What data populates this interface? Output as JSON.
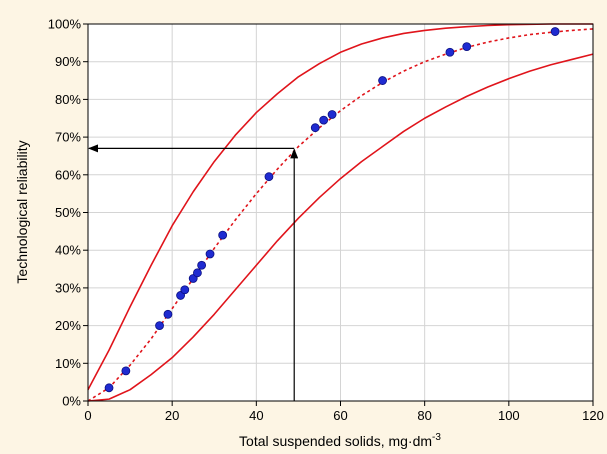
{
  "chart_data": {
    "type": "scatter",
    "xlabel": "Total suspended solids, mg·dm",
    "xlabel_superscript": "-3",
    "ylabel": "Technological reliability",
    "xlim": [
      0,
      120
    ],
    "ylim": [
      0,
      100
    ],
    "x_ticks": [
      0,
      20,
      40,
      60,
      80,
      100,
      120
    ],
    "y_ticks": [
      0,
      10,
      20,
      30,
      40,
      50,
      60,
      70,
      80,
      90,
      100
    ],
    "y_tick_suffix": "%",
    "grid": true,
    "series": [
      {
        "kind": "points",
        "color": "#1f2bd1",
        "x": [
          5,
          9,
          17,
          19,
          22,
          23,
          25,
          26,
          27,
          29,
          32,
          43,
          54,
          56,
          58,
          70,
          86,
          90,
          111
        ],
        "y": [
          3.5,
          8,
          20,
          23,
          28,
          29.5,
          32.5,
          34,
          36,
          39,
          44,
          59.5,
          72.5,
          74.5,
          76,
          85,
          92.5,
          94,
          98
        ]
      },
      {
        "kind": "fitted-curve",
        "style": "dashed",
        "color": "#e0141b",
        "x": [
          0,
          5,
          10,
          15,
          20,
          25,
          30,
          35,
          40,
          45,
          50,
          55,
          60,
          65,
          70,
          75,
          80,
          85,
          90,
          95,
          100,
          105,
          110,
          115,
          120
        ],
        "y": [
          0,
          3.5,
          9.5,
          16.5,
          24.5,
          32.5,
          40.5,
          48,
          55,
          61.5,
          67.5,
          72.5,
          77,
          81,
          84.5,
          87.5,
          90,
          92,
          93.8,
          95.2,
          96.3,
          97.2,
          97.8,
          98.3,
          98.7
        ]
      },
      {
        "kind": "confidence-bound-upper",
        "style": "solid",
        "color": "#e0141b",
        "x": [
          0,
          5,
          10,
          15,
          20,
          25,
          30,
          35,
          40,
          45,
          50,
          55,
          60,
          65,
          70,
          75,
          80,
          85,
          90,
          95,
          100,
          105,
          110,
          115,
          120
        ],
        "y": [
          3,
          13.5,
          25,
          36,
          46.5,
          55.5,
          63.5,
          70.5,
          76.5,
          81.5,
          86,
          89.5,
          92.5,
          94.7,
          96.3,
          97.5,
          98.3,
          98.9,
          99.3,
          99.6,
          99.8,
          99.9,
          100,
          100,
          100
        ]
      },
      {
        "kind": "confidence-bound-lower",
        "style": "solid",
        "color": "#e0141b",
        "x": [
          0,
          5,
          10,
          15,
          20,
          25,
          30,
          35,
          40,
          45,
          50,
          55,
          60,
          65,
          70,
          75,
          80,
          85,
          90,
          95,
          100,
          105,
          110,
          115,
          120
        ],
        "y": [
          0,
          0.5,
          3,
          7,
          11.5,
          17,
          23,
          29.5,
          36,
          42.5,
          48.5,
          54,
          59,
          63.5,
          67.5,
          71.5,
          75,
          78,
          80.8,
          83.3,
          85.5,
          87.5,
          89.2,
          90.6,
          92
        ]
      }
    ],
    "annotation": {
      "x": 49,
      "y": 67,
      "color": "#000000",
      "arrow_to": "y-axis"
    }
  }
}
